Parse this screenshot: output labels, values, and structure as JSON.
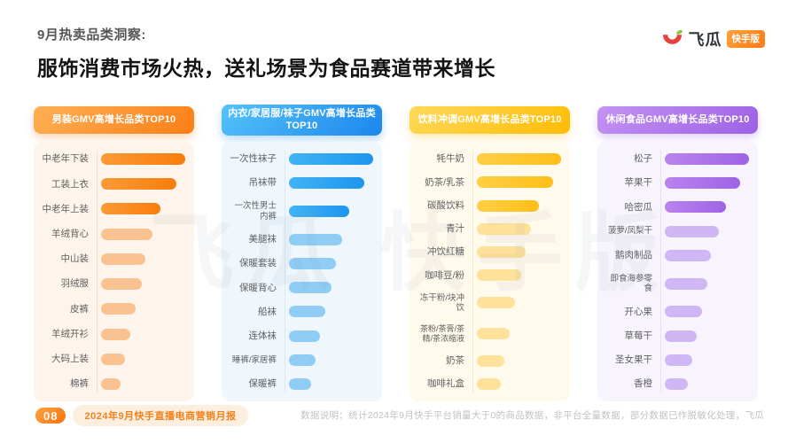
{
  "header": {
    "eyebrow": "9月热卖品类洞察:",
    "title": "服饰消费市场火热，送礼场景为食品赛道带来增长"
  },
  "brand": {
    "name": "飞瓜",
    "badge": "快手版",
    "logo_red": "#E8403A",
    "leaf_green": "#8CC63F",
    "badge_gradient": [
      "#FFA23E",
      "#FF7A14"
    ]
  },
  "watermark": "飞瓜 快手版",
  "panels": [
    {
      "title": "男装GMV高增长品类TOP10",
      "theme": {
        "pill_from": "#FFB057",
        "pill_to": "#FB7E14",
        "shadow": "rgba(251,126,20,0.28)",
        "bg": "#FDF4EB",
        "axis": "#F1E0CE",
        "strong_from": "#FB9A36",
        "strong_to": "#F97D0C",
        "light": "#F9C290"
      }
    },
    {
      "title": "内衣/家居服/袜子GMV高增长品类TOP10",
      "theme": {
        "pill_from": "#55C3F9",
        "pill_to": "#1C86ED",
        "shadow": "rgba(28,134,237,0.28)",
        "bg": "#EFF7FD",
        "axis": "#D8E9F5",
        "strong_from": "#41B4F4",
        "strong_to": "#1E95EE",
        "light": "#90CDF5"
      }
    },
    {
      "title": "饮料冲调GMV高增长品类TOP10",
      "theme": {
        "pill_from": "#FFD95A",
        "pill_to": "#FFBC05",
        "shadow": "rgba(255,188,5,0.30)",
        "bg": "#FFFAEC",
        "axis": "#F5E8C8",
        "strong_from": "#FFCF45",
        "strong_to": "#FFBE18",
        "light": "#FFE299"
      }
    },
    {
      "title": "休闲食品GMV高增长品类TOP10",
      "theme": {
        "pill_from": "#C493F3",
        "pill_to": "#9C60E5",
        "shadow": "rgba(156,96,229,0.28)",
        "bg": "#F8F4FD",
        "axis": "#E8DEF6",
        "strong_from": "#B983EE",
        "strong_to": "#9E63E6",
        "light": "#CFB6F5"
      }
    }
  ],
  "chart_data": [
    {
      "type": "bar",
      "orientation": "horizontal",
      "title": "男装GMV高增长品类TOP10",
      "categories": [
        "中老年下装",
        "工装上衣",
        "中老年上装",
        "羊绒背心",
        "中山装",
        "羽绒服",
        "皮裤",
        "羊绒开衫",
        "大码上装",
        "棉裤"
      ],
      "values": [
        100,
        89,
        71,
        61,
        53,
        48,
        41,
        35,
        28,
        23
      ],
      "value_note": "bar lengths relative to top category = 100; no numeric axis shown in image",
      "legend": "none",
      "grid": "off"
    },
    {
      "type": "bar",
      "orientation": "horizontal",
      "title": "内衣/家居服/袜子GMV高增长品类TOP10",
      "categories": [
        "一次性袜子",
        "吊袜带",
        "一次性男士内裤",
        "美腿袜",
        "保暖套装",
        "保暖背心",
        "船袜",
        "连体袜",
        "睡裤/家居裤",
        "保暖裤"
      ],
      "values": [
        100,
        89,
        72,
        63,
        56,
        51,
        43,
        37,
        32,
        26
      ],
      "value_note": "bar lengths relative to top category = 100; no numeric axis shown in image",
      "legend": "none",
      "grid": "off"
    },
    {
      "type": "bar",
      "orientation": "horizontal",
      "title": "饮料冲调GMV高增长品类TOP10",
      "categories": [
        "牦牛奶",
        "奶茶/乳茶",
        "碳酸饮料",
        "青汁",
        "冲饮红糖",
        "咖啡豆/粉",
        "冻干粉/块冲饮",
        "茶粉/茶膏/茶精/茶浓缩液",
        "奶茶",
        "咖啡礼盒"
      ],
      "values": [
        100,
        90,
        74,
        64,
        58,
        53,
        45,
        39,
        33,
        28
      ],
      "value_note": "bar lengths relative to top category = 100; no numeric axis shown in image",
      "legend": "none",
      "grid": "off"
    },
    {
      "type": "bar",
      "orientation": "horizontal",
      "title": "休闲食品GMV高增长品类TOP10",
      "categories": [
        "松子",
        "苹果干",
        "哈密瓜",
        "菠萝/凤梨干",
        "鹅肉制品",
        "即食海参零食",
        "开心果",
        "草莓干",
        "圣女果干",
        "香橙"
      ],
      "values": [
        100,
        89,
        73,
        64,
        55,
        51,
        44,
        38,
        33,
        27
      ],
      "value_note": "bar lengths relative to top category = 100; no numeric axis shown in image",
      "legend": "none",
      "grid": "off"
    }
  ],
  "footer": {
    "page_number": "08",
    "report_label": "2024年9月快手直播电商营销月报",
    "note": "数据说明：统计2024年9月快手平台销量大于0的商品数据，非平台全量数据，部分数据已作脱敏化处理，飞瓜"
  }
}
